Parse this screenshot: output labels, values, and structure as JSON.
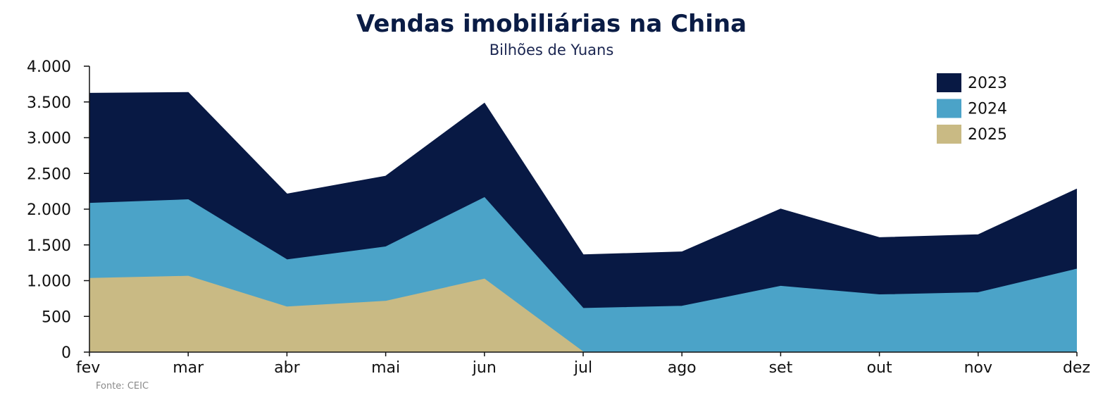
{
  "chart_data": {
    "type": "area",
    "title": "Vendas imobiliárias na China",
    "subtitle": "Bilhões de Yuans",
    "source": "Fonte: CEIC",
    "categories": [
      "fev",
      "mar",
      "abr",
      "mai",
      "jun",
      "jul",
      "ago",
      "set",
      "out",
      "nov",
      "dez"
    ],
    "ylim": [
      0,
      4000
    ],
    "yticks": [
      0,
      500,
      1000,
      1500,
      2000,
      2500,
      3000,
      3500,
      4000
    ],
    "ytick_labels": [
      "0",
      "500",
      "1.000",
      "1.500",
      "2.000",
      "2.500",
      "3.000",
      "3.500",
      "4.000"
    ],
    "legend_position": "top-right",
    "grid": false,
    "series": [
      {
        "name": "2023",
        "color": "#081944",
        "values": [
          3620,
          3630,
          2210,
          2460,
          3480,
          1360,
          1400,
          2000,
          1600,
          1640,
          2280
        ]
      },
      {
        "name": "2024",
        "color": "#4ba3c8",
        "values": [
          2080,
          2130,
          1290,
          1470,
          2160,
          610,
          640,
          920,
          800,
          830,
          1160
        ]
      },
      {
        "name": "2025",
        "color": "#c9ba84",
        "values": [
          1030,
          1060,
          630,
          710,
          1020,
          0,
          null,
          null,
          null,
          null,
          null
        ]
      }
    ]
  }
}
